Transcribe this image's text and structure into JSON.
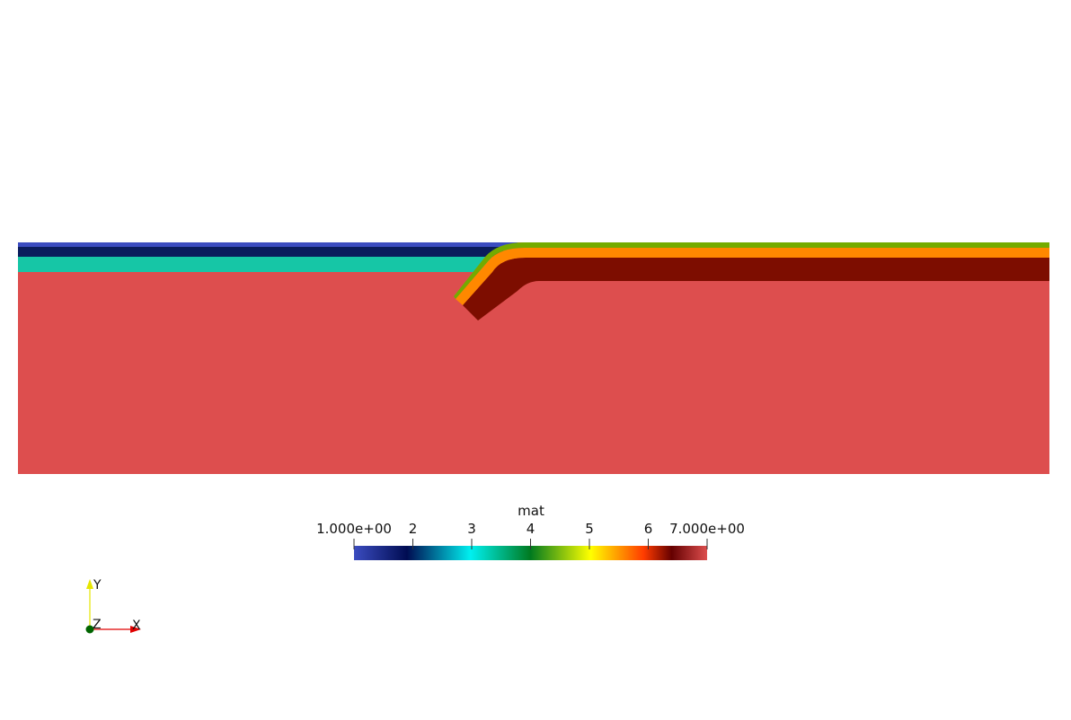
{
  "render": {
    "colors": {
      "mat1": "#3b4cc0",
      "mat2": "#0a1c5c",
      "mat3": "#16c6a6",
      "mat4": "#74ab00",
      "mat5": "#ff8800",
      "mat6": "#7d0d00",
      "mat7": "#dd4e4e"
    }
  },
  "colorbar": {
    "title": "mat",
    "ticks": [
      {
        "value": 1,
        "label": "1.000e+00"
      },
      {
        "value": 2,
        "label": "2"
      },
      {
        "value": 3,
        "label": "3"
      },
      {
        "value": 4,
        "label": "4"
      },
      {
        "value": 5,
        "label": "5"
      },
      {
        "value": 6,
        "label": "6"
      },
      {
        "value": 7,
        "label": "7.000e+00"
      }
    ],
    "range": [
      1,
      7
    ],
    "stops": [
      {
        "t": 0.0,
        "color": "#3b4cc0"
      },
      {
        "t": 0.15,
        "color": "#000c52"
      },
      {
        "t": 0.33,
        "color": "#00f0f0"
      },
      {
        "t": 0.5,
        "color": "#007a1f"
      },
      {
        "t": 0.67,
        "color": "#ffff00"
      },
      {
        "t": 0.82,
        "color": "#ff3c00"
      },
      {
        "t": 0.9,
        "color": "#650000"
      },
      {
        "t": 1.0,
        "color": "#dd4e4e"
      }
    ]
  },
  "axes": {
    "x_label": "X",
    "y_label": "Y",
    "z_label": "Z",
    "x_color": "#e00000",
    "y_color": "#e6e600",
    "z_color": "#005a00"
  }
}
